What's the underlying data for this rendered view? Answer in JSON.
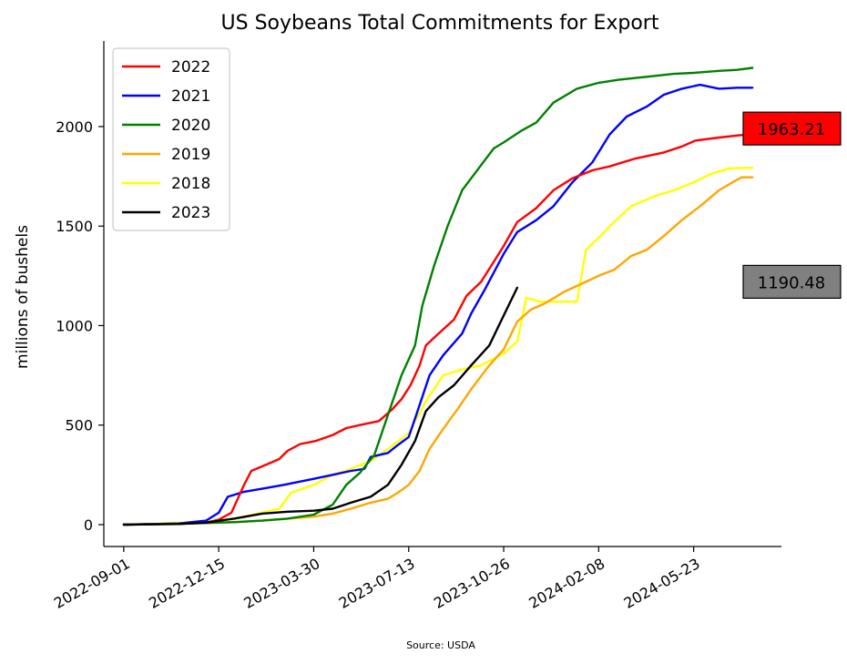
{
  "chart_data": {
    "type": "line",
    "title": "US Soybeans Total Commitments for Export",
    "ylabel": "millions of bushels",
    "xlabel": "",
    "source": "Source: USDA",
    "x_ticks": [
      "2022-09-01",
      "2022-12-15",
      "2023-03-30",
      "2023-07-13",
      "2023-10-26",
      "2024-02-08",
      "2024-05-23"
    ],
    "x_range": [
      "2022-08-10",
      "2024-08-28"
    ],
    "y_ticks": [
      0,
      500,
      1000,
      1500,
      2000
    ],
    "ylim": [
      -110,
      2430
    ],
    "legend_position": "top-left",
    "grid": false,
    "end_labels": [
      {
        "text": "1963.21",
        "color": "#ff0000",
        "y": 1990
      },
      {
        "text": "1190.48",
        "color": "#808080",
        "y": 1220
      }
    ],
    "series": [
      {
        "name": "2022",
        "color": "#ff0000",
        "points": [
          [
            "2022-09-01",
            0
          ],
          [
            "2022-10-01",
            2
          ],
          [
            "2022-11-01",
            5
          ],
          [
            "2022-12-01",
            10
          ],
          [
            "2022-12-15",
            25
          ],
          [
            "2022-12-29",
            60
          ],
          [
            "2023-01-12",
            200
          ],
          [
            "2023-01-20",
            270
          ],
          [
            "2023-02-05",
            300
          ],
          [
            "2023-02-20",
            330
          ],
          [
            "2023-03-01",
            370
          ],
          [
            "2023-03-15",
            405
          ],
          [
            "2023-04-01",
            420
          ],
          [
            "2023-04-20",
            450
          ],
          [
            "2023-05-05",
            485
          ],
          [
            "2023-05-20",
            500
          ],
          [
            "2023-06-10",
            520
          ],
          [
            "2023-06-25",
            580
          ],
          [
            "2023-07-05",
            630
          ],
          [
            "2023-07-15",
            700
          ],
          [
            "2023-07-25",
            800
          ],
          [
            "2023-08-01",
            900
          ],
          [
            "2023-08-15",
            960
          ],
          [
            "2023-09-01",
            1030
          ],
          [
            "2023-09-15",
            1150
          ],
          [
            "2023-10-01",
            1220
          ],
          [
            "2023-10-15",
            1320
          ],
          [
            "2023-10-26",
            1400
          ],
          [
            "2023-11-10",
            1520
          ],
          [
            "2023-12-01",
            1590
          ],
          [
            "2023-12-20",
            1680
          ],
          [
            "2024-01-10",
            1740
          ],
          [
            "2024-02-01",
            1780
          ],
          [
            "2024-02-20",
            1800
          ],
          [
            "2024-03-20",
            1840
          ],
          [
            "2024-04-20",
            1870
          ],
          [
            "2024-05-10",
            1900
          ],
          [
            "2024-05-25",
            1930
          ],
          [
            "2024-06-20",
            1945
          ],
          [
            "2024-07-10",
            1955
          ],
          [
            "2024-07-27",
            1963
          ]
        ]
      },
      {
        "name": "2021",
        "color": "#0000ff",
        "points": [
          [
            "2022-09-01",
            0
          ],
          [
            "2022-10-01",
            3
          ],
          [
            "2022-11-01",
            6
          ],
          [
            "2022-12-01",
            20
          ],
          [
            "2022-12-15",
            60
          ],
          [
            "2022-12-25",
            140
          ],
          [
            "2023-01-12",
            165
          ],
          [
            "2023-02-01",
            180
          ],
          [
            "2023-02-25",
            200
          ],
          [
            "2023-03-30",
            230
          ],
          [
            "2023-04-20",
            250
          ],
          [
            "2023-05-10",
            270
          ],
          [
            "2023-05-25",
            280
          ],
          [
            "2023-06-01",
            340
          ],
          [
            "2023-06-20",
            360
          ],
          [
            "2023-07-01",
            400
          ],
          [
            "2023-07-13",
            440
          ],
          [
            "2023-07-22",
            560
          ],
          [
            "2023-08-05",
            750
          ],
          [
            "2023-08-20",
            850
          ],
          [
            "2023-09-10",
            960
          ],
          [
            "2023-09-20",
            1060
          ],
          [
            "2023-10-05",
            1180
          ],
          [
            "2023-10-26",
            1360
          ],
          [
            "2023-11-10",
            1470
          ],
          [
            "2023-12-01",
            1530
          ],
          [
            "2023-12-20",
            1600
          ],
          [
            "2024-01-10",
            1720
          ],
          [
            "2024-02-01",
            1820
          ],
          [
            "2024-02-20",
            1960
          ],
          [
            "2024-03-10",
            2050
          ],
          [
            "2024-04-01",
            2100
          ],
          [
            "2024-04-20",
            2160
          ],
          [
            "2024-05-10",
            2190
          ],
          [
            "2024-05-30",
            2210
          ],
          [
            "2024-06-20",
            2190
          ],
          [
            "2024-07-10",
            2195
          ],
          [
            "2024-07-27",
            2195
          ]
        ]
      },
      {
        "name": "2020",
        "color": "#008000",
        "points": [
          [
            "2022-09-01",
            0
          ],
          [
            "2022-10-01",
            2
          ],
          [
            "2022-11-01",
            4
          ],
          [
            "2022-12-01",
            8
          ],
          [
            "2023-01-01",
            12
          ],
          [
            "2023-02-01",
            20
          ],
          [
            "2023-03-01",
            30
          ],
          [
            "2023-03-30",
            50
          ],
          [
            "2023-04-20",
            100
          ],
          [
            "2023-05-05",
            200
          ],
          [
            "2023-05-20",
            260
          ],
          [
            "2023-06-05",
            350
          ],
          [
            "2023-06-20",
            550
          ],
          [
            "2023-07-05",
            750
          ],
          [
            "2023-07-20",
            900
          ],
          [
            "2023-07-28",
            1100
          ],
          [
            "2023-08-10",
            1300
          ],
          [
            "2023-08-25",
            1500
          ],
          [
            "2023-09-10",
            1680
          ],
          [
            "2023-09-30",
            1800
          ],
          [
            "2023-10-15",
            1890
          ],
          [
            "2023-10-26",
            1920
          ],
          [
            "2023-11-15",
            1980
          ],
          [
            "2023-12-01",
            2020
          ],
          [
            "2023-12-20",
            2120
          ],
          [
            "2024-01-15",
            2190
          ],
          [
            "2024-02-08",
            2220
          ],
          [
            "2024-03-01",
            2235
          ],
          [
            "2024-04-01",
            2250
          ],
          [
            "2024-05-01",
            2265
          ],
          [
            "2024-05-23",
            2270
          ],
          [
            "2024-06-20",
            2280
          ],
          [
            "2024-07-10",
            2285
          ],
          [
            "2024-07-27",
            2295
          ]
        ]
      },
      {
        "name": "2019",
        "color": "#ffa500",
        "points": [
          [
            "2022-09-01",
            0
          ],
          [
            "2022-10-01",
            2
          ],
          [
            "2022-11-01",
            4
          ],
          [
            "2022-12-01",
            8
          ],
          [
            "2023-01-01",
            12
          ],
          [
            "2023-02-01",
            20
          ],
          [
            "2023-03-01",
            30
          ],
          [
            "2023-03-30",
            40
          ],
          [
            "2023-04-20",
            55
          ],
          [
            "2023-05-10",
            80
          ],
          [
            "2023-06-01",
            110
          ],
          [
            "2023-06-20",
            130
          ],
          [
            "2023-07-01",
            160
          ],
          [
            "2023-07-13",
            200
          ],
          [
            "2023-07-25",
            270
          ],
          [
            "2023-08-05",
            380
          ],
          [
            "2023-08-20",
            480
          ],
          [
            "2023-09-05",
            580
          ],
          [
            "2023-09-20",
            680
          ],
          [
            "2023-10-10",
            800
          ],
          [
            "2023-10-26",
            880
          ],
          [
            "2023-11-10",
            1020
          ],
          [
            "2023-11-25",
            1080
          ],
          [
            "2023-12-10",
            1110
          ],
          [
            "2024-01-01",
            1170
          ],
          [
            "2024-01-20",
            1210
          ],
          [
            "2024-02-08",
            1250
          ],
          [
            "2024-02-25",
            1280
          ],
          [
            "2024-03-15",
            1350
          ],
          [
            "2024-04-01",
            1380
          ],
          [
            "2024-04-20",
            1450
          ],
          [
            "2024-05-10",
            1530
          ],
          [
            "2024-05-30",
            1600
          ],
          [
            "2024-06-20",
            1680
          ],
          [
            "2024-07-05",
            1720
          ],
          [
            "2024-07-15",
            1745
          ],
          [
            "2024-07-27",
            1745
          ]
        ]
      },
      {
        "name": "2018",
        "color": "#ffff00",
        "points": [
          [
            "2022-09-01",
            0
          ],
          [
            "2022-10-01",
            3
          ],
          [
            "2022-11-01",
            8
          ],
          [
            "2022-12-01",
            15
          ],
          [
            "2023-01-01",
            30
          ],
          [
            "2023-02-01",
            60
          ],
          [
            "2023-02-20",
            80
          ],
          [
            "2023-03-05",
            160
          ],
          [
            "2023-03-30",
            200
          ],
          [
            "2023-04-20",
            250
          ],
          [
            "2023-05-10",
            280
          ],
          [
            "2023-06-01",
            320
          ],
          [
            "2023-06-20",
            380
          ],
          [
            "2023-07-13",
            460
          ],
          [
            "2023-08-01",
            620
          ],
          [
            "2023-08-20",
            750
          ],
          [
            "2023-09-10",
            780
          ],
          [
            "2023-10-01",
            800
          ],
          [
            "2023-10-26",
            860
          ],
          [
            "2023-11-10",
            920
          ],
          [
            "2023-11-20",
            1140
          ],
          [
            "2023-12-05",
            1120
          ],
          [
            "2023-12-25",
            1120
          ],
          [
            "2024-01-15",
            1120
          ],
          [
            "2024-01-25",
            1380
          ],
          [
            "2024-02-10",
            1450
          ],
          [
            "2024-02-25",
            1520
          ],
          [
            "2024-03-15",
            1600
          ],
          [
            "2024-04-10",
            1650
          ],
          [
            "2024-05-01",
            1680
          ],
          [
            "2024-05-23",
            1720
          ],
          [
            "2024-06-10",
            1760
          ],
          [
            "2024-07-01",
            1790
          ],
          [
            "2024-07-27",
            1793
          ]
        ]
      },
      {
        "name": "2023",
        "color": "#000000",
        "points": [
          [
            "2022-09-01",
            0
          ],
          [
            "2022-10-01",
            1
          ],
          [
            "2022-11-01",
            3
          ],
          [
            "2022-12-01",
            10
          ],
          [
            "2023-01-01",
            30
          ],
          [
            "2023-02-01",
            55
          ],
          [
            "2023-03-01",
            65
          ],
          [
            "2023-03-30",
            70
          ],
          [
            "2023-04-20",
            80
          ],
          [
            "2023-05-10",
            110
          ],
          [
            "2023-06-01",
            140
          ],
          [
            "2023-06-20",
            200
          ],
          [
            "2023-07-05",
            300
          ],
          [
            "2023-07-20",
            420
          ],
          [
            "2023-08-01",
            570
          ],
          [
            "2023-08-15",
            640
          ],
          [
            "2023-09-01",
            700
          ],
          [
            "2023-09-20",
            800
          ],
          [
            "2023-10-10",
            900
          ],
          [
            "2023-10-26",
            1050
          ],
          [
            "2023-11-10",
            1190
          ]
        ]
      }
    ]
  }
}
